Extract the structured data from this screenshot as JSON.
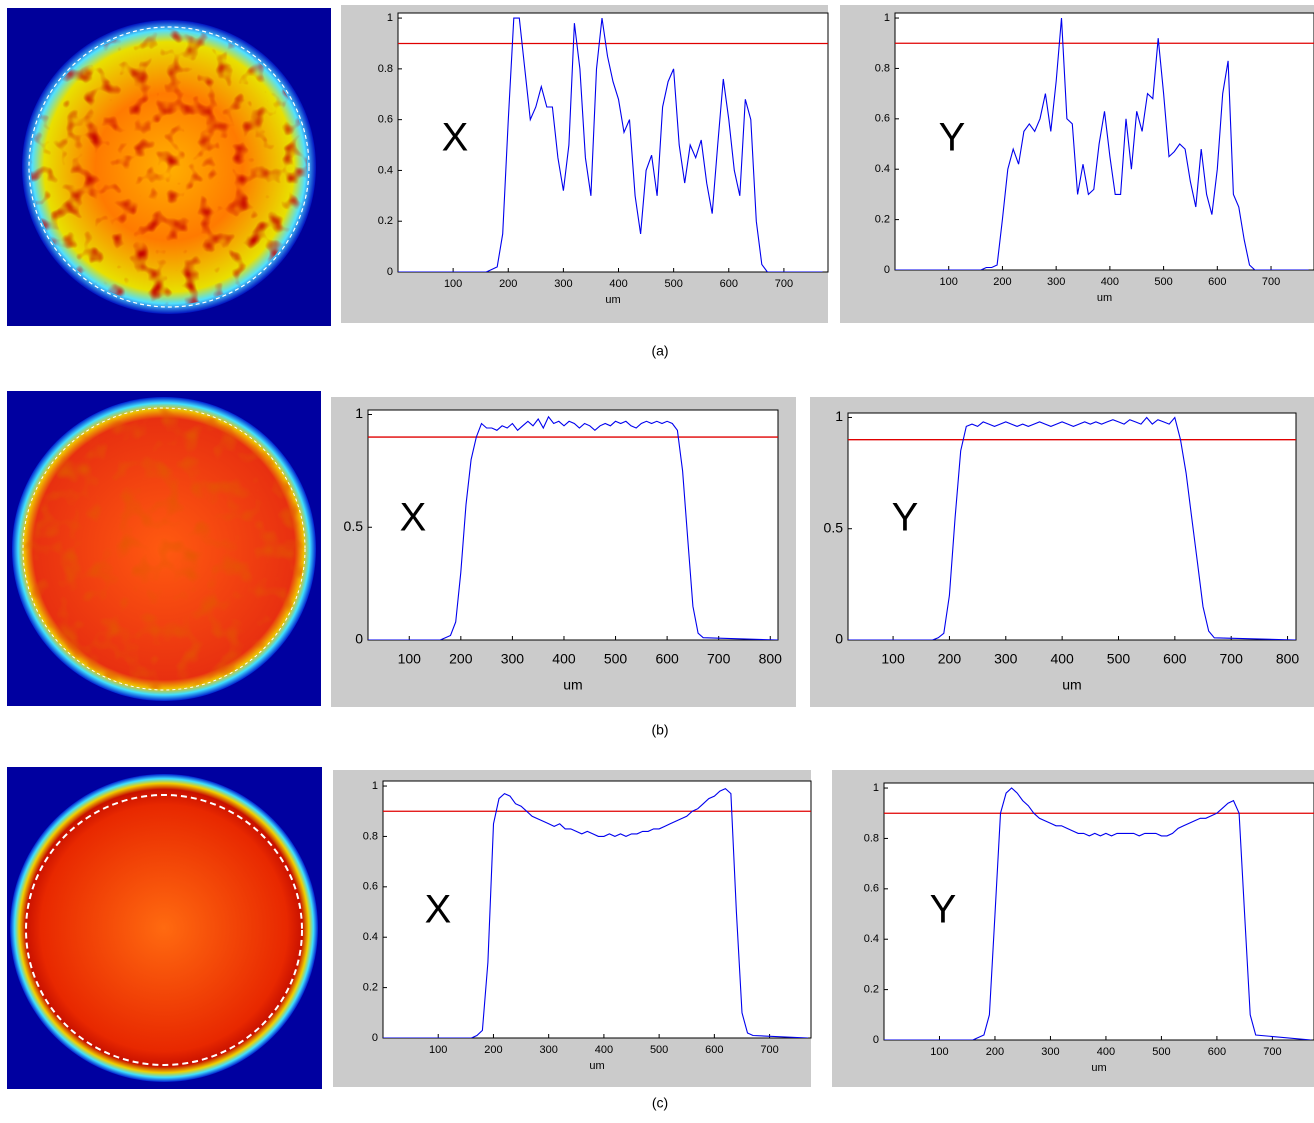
{
  "captions": [
    "(a)",
    "(b)",
    "(c)"
  ],
  "chart_data": [
    {
      "type": "line",
      "annotation": "X",
      "x_label": "um",
      "color": "#0000ee",
      "threshold": 0.9,
      "threshold_color": "#e00000",
      "xlim": [
        0,
        780
      ],
      "xticks": [
        100,
        200,
        300,
        400,
        500,
        600,
        700
      ],
      "ylim": [
        0,
        1.02
      ],
      "yticks": [
        0,
        0.2,
        0.4,
        0.6,
        0.8,
        1
      ],
      "x": [
        0,
        150,
        160,
        170,
        180,
        190,
        200,
        210,
        220,
        230,
        240,
        250,
        260,
        270,
        280,
        290,
        300,
        310,
        320,
        330,
        340,
        350,
        360,
        370,
        380,
        390,
        400,
        410,
        420,
        430,
        440,
        450,
        460,
        470,
        480,
        490,
        500,
        510,
        520,
        530,
        540,
        550,
        560,
        570,
        580,
        590,
        600,
        610,
        620,
        630,
        640,
        650,
        660,
        670,
        770
      ],
      "values": [
        0,
        0,
        0,
        0.01,
        0.02,
        0.15,
        0.6,
        1.0,
        1.0,
        0.8,
        0.6,
        0.65,
        0.73,
        0.65,
        0.65,
        0.45,
        0.32,
        0.5,
        0.98,
        0.8,
        0.45,
        0.3,
        0.8,
        1.0,
        0.85,
        0.75,
        0.68,
        0.55,
        0.6,
        0.3,
        0.15,
        0.4,
        0.46,
        0.3,
        0.65,
        0.75,
        0.8,
        0.5,
        0.35,
        0.5,
        0.45,
        0.52,
        0.35,
        0.23,
        0.5,
        0.76,
        0.6,
        0.4,
        0.3,
        0.68,
        0.6,
        0.2,
        0.03,
        0,
        0
      ]
    },
    {
      "type": "line",
      "annotation": "Y",
      "x_label": "um",
      "color": "#0000ee",
      "threshold": 0.9,
      "threshold_color": "#e00000",
      "xlim": [
        0,
        780
      ],
      "xticks": [
        100,
        200,
        300,
        400,
        500,
        600,
        700
      ],
      "ylim": [
        0,
        1.02
      ],
      "yticks": [
        0,
        0.2,
        0.4,
        0.6,
        0.8,
        1
      ],
      "x": [
        0,
        150,
        160,
        170,
        180,
        190,
        200,
        210,
        220,
        230,
        240,
        250,
        260,
        270,
        280,
        290,
        300,
        310,
        320,
        330,
        340,
        350,
        360,
        370,
        380,
        390,
        400,
        410,
        420,
        430,
        440,
        450,
        460,
        470,
        480,
        490,
        500,
        510,
        520,
        530,
        540,
        550,
        560,
        570,
        580,
        590,
        600,
        610,
        620,
        630,
        640,
        650,
        660,
        670,
        770
      ],
      "values": [
        0,
        0,
        0,
        0.01,
        0.01,
        0.02,
        0.2,
        0.4,
        0.48,
        0.42,
        0.55,
        0.58,
        0.55,
        0.6,
        0.7,
        0.55,
        0.75,
        1.0,
        0.6,
        0.58,
        0.3,
        0.42,
        0.3,
        0.32,
        0.5,
        0.63,
        0.45,
        0.3,
        0.3,
        0.6,
        0.4,
        0.63,
        0.55,
        0.7,
        0.68,
        0.92,
        0.7,
        0.45,
        0.47,
        0.5,
        0.48,
        0.35,
        0.25,
        0.48,
        0.3,
        0.22,
        0.4,
        0.7,
        0.83,
        0.3,
        0.25,
        0.12,
        0.02,
        0,
        0
      ]
    },
    {
      "type": "line",
      "annotation": "X",
      "x_label": "um",
      "color": "#0000ee",
      "threshold": 0.9,
      "threshold_color": "#e00000",
      "xlim": [
        20,
        815
      ],
      "xticks": [
        100,
        200,
        300,
        400,
        500,
        600,
        700,
        800
      ],
      "ylim": [
        0,
        1.02
      ],
      "yticks": [
        0,
        0.5,
        1
      ],
      "x": [
        20,
        150,
        160,
        170,
        180,
        190,
        200,
        210,
        220,
        230,
        240,
        250,
        260,
        270,
        280,
        290,
        300,
        310,
        320,
        330,
        340,
        350,
        360,
        370,
        380,
        390,
        400,
        410,
        420,
        430,
        440,
        450,
        460,
        470,
        480,
        490,
        500,
        510,
        520,
        530,
        540,
        550,
        560,
        570,
        580,
        590,
        600,
        610,
        620,
        630,
        640,
        650,
        660,
        670,
        815
      ],
      "values": [
        0,
        0,
        0,
        0.01,
        0.02,
        0.08,
        0.3,
        0.6,
        0.8,
        0.9,
        0.96,
        0.94,
        0.94,
        0.93,
        0.95,
        0.94,
        0.96,
        0.93,
        0.95,
        0.97,
        0.95,
        0.98,
        0.94,
        0.99,
        0.96,
        0.97,
        0.95,
        0.97,
        0.96,
        0.94,
        0.96,
        0.95,
        0.93,
        0.95,
        0.96,
        0.95,
        0.97,
        0.96,
        0.97,
        0.95,
        0.94,
        0.96,
        0.97,
        0.96,
        0.97,
        0.96,
        0.97,
        0.96,
        0.93,
        0.75,
        0.45,
        0.15,
        0.03,
        0.01,
        0
      ]
    },
    {
      "type": "line",
      "annotation": "Y",
      "x_label": "um",
      "color": "#0000ee",
      "threshold": 0.9,
      "threshold_color": "#e00000",
      "xlim": [
        20,
        815
      ],
      "xticks": [
        100,
        200,
        300,
        400,
        500,
        600,
        700,
        800
      ],
      "ylim": [
        0,
        1.02
      ],
      "yticks": [
        0,
        0.5,
        1
      ],
      "x": [
        20,
        150,
        160,
        170,
        180,
        190,
        200,
        210,
        220,
        230,
        240,
        250,
        260,
        270,
        280,
        290,
        300,
        310,
        320,
        330,
        340,
        350,
        360,
        370,
        380,
        390,
        400,
        410,
        420,
        430,
        440,
        450,
        460,
        470,
        480,
        490,
        500,
        510,
        520,
        530,
        540,
        550,
        560,
        570,
        580,
        590,
        600,
        610,
        620,
        630,
        640,
        650,
        660,
        670,
        815
      ],
      "values": [
        0,
        0,
        0,
        0,
        0.01,
        0.03,
        0.2,
        0.55,
        0.85,
        0.96,
        0.97,
        0.96,
        0.98,
        0.97,
        0.96,
        0.97,
        0.98,
        0.97,
        0.96,
        0.97,
        0.96,
        0.97,
        0.98,
        0.97,
        0.96,
        0.97,
        0.98,
        0.97,
        0.96,
        0.97,
        0.98,
        0.97,
        0.98,
        0.97,
        0.98,
        0.99,
        0.98,
        0.97,
        0.99,
        0.98,
        0.97,
        1.0,
        0.97,
        0.99,
        0.98,
        0.97,
        1.0,
        0.9,
        0.75,
        0.55,
        0.35,
        0.15,
        0.04,
        0.01,
        0
      ]
    },
    {
      "type": "line",
      "annotation": "X",
      "x_label": "um",
      "color": "#0000ee",
      "threshold": 0.9,
      "threshold_color": "#e00000",
      "xlim": [
        0,
        775
      ],
      "xticks": [
        100,
        200,
        300,
        400,
        500,
        600,
        700
      ],
      "ylim": [
        0,
        1.02
      ],
      "yticks": [
        0,
        0.2,
        0.4,
        0.6,
        0.8,
        1
      ],
      "x": [
        0,
        150,
        160,
        170,
        180,
        190,
        200,
        210,
        220,
        230,
        240,
        250,
        260,
        270,
        280,
        290,
        300,
        310,
        320,
        330,
        340,
        350,
        360,
        370,
        380,
        390,
        400,
        410,
        420,
        430,
        440,
        450,
        460,
        470,
        480,
        490,
        500,
        510,
        520,
        530,
        540,
        550,
        560,
        570,
        580,
        590,
        600,
        610,
        620,
        630,
        640,
        650,
        660,
        670,
        770
      ],
      "values": [
        0,
        0,
        0,
        0.01,
        0.03,
        0.3,
        0.85,
        0.95,
        0.97,
        0.96,
        0.93,
        0.92,
        0.9,
        0.88,
        0.87,
        0.86,
        0.85,
        0.84,
        0.85,
        0.83,
        0.83,
        0.82,
        0.81,
        0.82,
        0.81,
        0.8,
        0.8,
        0.81,
        0.8,
        0.81,
        0.8,
        0.81,
        0.81,
        0.82,
        0.82,
        0.83,
        0.83,
        0.84,
        0.85,
        0.86,
        0.87,
        0.88,
        0.9,
        0.91,
        0.93,
        0.95,
        0.96,
        0.98,
        0.99,
        0.97,
        0.5,
        0.1,
        0.02,
        0.01,
        0
      ]
    },
    {
      "type": "line",
      "annotation": "Y",
      "x_label": "um",
      "color": "#0000ee",
      "threshold": 0.9,
      "threshold_color": "#e00000",
      "xlim": [
        0,
        775
      ],
      "xticks": [
        100,
        200,
        300,
        400,
        500,
        600,
        700
      ],
      "ylim": [
        0,
        1.02
      ],
      "yticks": [
        0,
        0.2,
        0.4,
        0.6,
        0.8,
        1
      ],
      "x": [
        0,
        150,
        160,
        170,
        180,
        190,
        200,
        210,
        220,
        230,
        240,
        250,
        260,
        270,
        280,
        290,
        300,
        310,
        320,
        330,
        340,
        350,
        360,
        370,
        380,
        390,
        400,
        410,
        420,
        430,
        440,
        450,
        460,
        470,
        480,
        490,
        500,
        510,
        520,
        530,
        540,
        550,
        560,
        570,
        580,
        590,
        600,
        610,
        620,
        630,
        640,
        650,
        660,
        670,
        770
      ],
      "values": [
        0,
        0,
        0,
        0.01,
        0.02,
        0.1,
        0.5,
        0.9,
        0.98,
        1.0,
        0.98,
        0.95,
        0.93,
        0.9,
        0.88,
        0.87,
        0.86,
        0.85,
        0.85,
        0.84,
        0.83,
        0.82,
        0.82,
        0.81,
        0.82,
        0.81,
        0.82,
        0.81,
        0.82,
        0.82,
        0.82,
        0.82,
        0.81,
        0.82,
        0.82,
        0.82,
        0.81,
        0.81,
        0.82,
        0.84,
        0.85,
        0.86,
        0.87,
        0.88,
        0.88,
        0.89,
        0.9,
        0.92,
        0.94,
        0.95,
        0.9,
        0.5,
        0.1,
        0.02,
        0
      ]
    }
  ]
}
